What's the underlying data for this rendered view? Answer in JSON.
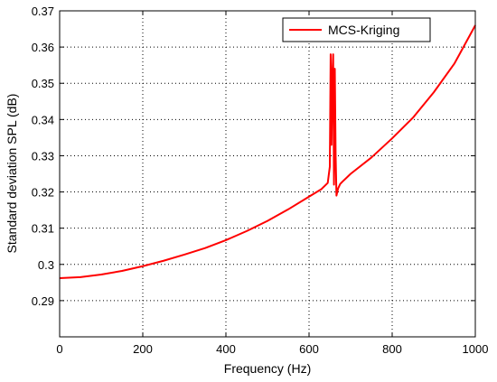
{
  "chart_data": {
    "type": "line",
    "xlabel": "Frequency (Hz)",
    "ylabel": "Standard deviation SPL (dB)",
    "xlim": [
      0,
      1000
    ],
    "ylim": [
      0.28,
      0.37
    ],
    "x_ticks": [
      "0",
      "200",
      "400",
      "600",
      "800",
      "1000"
    ],
    "y_ticks": [
      "0.29",
      "0.3",
      "0.31",
      "0.32",
      "0.33",
      "0.34",
      "0.35",
      "0.36",
      "0.37"
    ],
    "grid": true,
    "legend_position": "top-right",
    "series": [
      {
        "name": "MCS-Kriging",
        "color": "#ff0000",
        "x": [
          0,
          50,
          100,
          150,
          200,
          250,
          300,
          350,
          400,
          450,
          500,
          550,
          600,
          630,
          645,
          650,
          652,
          654,
          656,
          658,
          660,
          662,
          664,
          666,
          668,
          670,
          675,
          680,
          700,
          750,
          800,
          850,
          900,
          950,
          1000
        ],
        "y": [
          0.2962,
          0.2965,
          0.2972,
          0.2982,
          0.2995,
          0.301,
          0.3027,
          0.3045,
          0.3067,
          0.3092,
          0.312,
          0.3152,
          0.3187,
          0.3208,
          0.3225,
          0.327,
          0.358,
          0.333,
          0.352,
          0.358,
          0.322,
          0.354,
          0.33,
          0.319,
          0.32,
          0.321,
          0.3222,
          0.3228,
          0.325,
          0.3295,
          0.3348,
          0.3405,
          0.3475,
          0.3555,
          0.366
        ]
      }
    ]
  }
}
